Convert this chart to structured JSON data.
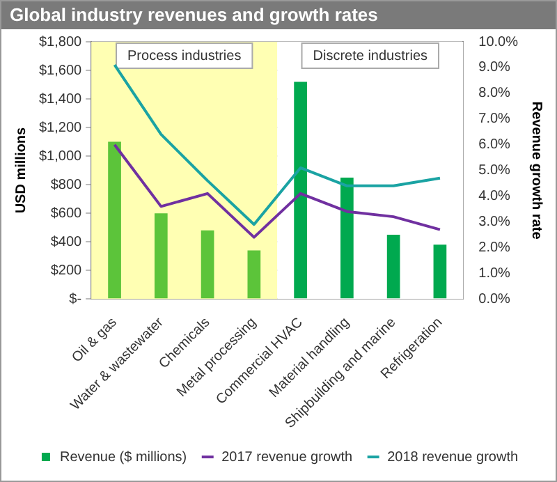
{
  "chart_data": {
    "type": "bar",
    "title": "Global industry revenues and growth rates",
    "ylabel": "USD millions",
    "y2label": "Revenue growth rate",
    "categories": [
      "Oil & gas",
      "Water & wastewater",
      "Chemicals",
      "Metal processing",
      "Commercial HVAC",
      "Material handling",
      "Shipbuilding and marine",
      "Refrigeration"
    ],
    "series": [
      {
        "name": "Revenue ($ millions)",
        "color": "#00a94f",
        "colors": [
          "#5cc43a",
          "#5cc43a",
          "#5cc43a",
          "#5cc43a",
          "#00a94f",
          "#00a94f",
          "#00a94f",
          "#00a94f"
        ],
        "values": [
          1100,
          600,
          480,
          340,
          1520,
          850,
          450,
          380
        ]
      },
      {
        "name": "2017 revenue growth",
        "type": "line",
        "axis": "y2",
        "color": "#7030a0",
        "values": [
          6.0,
          3.6,
          4.1,
          2.4,
          4.1,
          3.4,
          3.2,
          2.7
        ]
      },
      {
        "name": "2018 revenue growth",
        "type": "line",
        "axis": "y2",
        "color": "#1aa3a3",
        "values": [
          9.1,
          6.4,
          4.6,
          2.9,
          5.1,
          4.4,
          4.4,
          4.7
        ]
      }
    ],
    "ylim": [
      0,
      1800
    ],
    "yticks": [
      {
        "value": 0,
        "label": "$-"
      },
      {
        "value": 200,
        "label": "$200"
      },
      {
        "value": 400,
        "label": "$400"
      },
      {
        "value": 600,
        "label": "$600"
      },
      {
        "value": 800,
        "label": "$800"
      },
      {
        "value": 1000,
        "label": "$1,000"
      },
      {
        "value": 1200,
        "label": "$1,200"
      },
      {
        "value": 1400,
        "label": "$1,400"
      },
      {
        "value": 1600,
        "label": "$1,600"
      },
      {
        "value": 1800,
        "label": "$1,800"
      }
    ],
    "y2lim": [
      0,
      10
    ],
    "y2ticks": [
      {
        "value": 0,
        "label": "0.0%"
      },
      {
        "value": 1,
        "label": "1.0%"
      },
      {
        "value": 2,
        "label": "2.0%"
      },
      {
        "value": 3,
        "label": "3.0%"
      },
      {
        "value": 4,
        "label": "4.0%"
      },
      {
        "value": 5,
        "label": "5.0%"
      },
      {
        "value": 6,
        "label": "6.0%"
      },
      {
        "value": 7,
        "label": "7.0%"
      },
      {
        "value": 8,
        "label": "8.0%"
      },
      {
        "value": 9,
        "label": "9.0%"
      },
      {
        "value": 10,
        "label": "10.0%"
      }
    ],
    "bands": [
      {
        "axis": "x",
        "from": "Oil & gas",
        "to": "Metal processing",
        "label": "Process industries",
        "color": "#ffffb3"
      },
      {
        "axis": "x",
        "from": "Commercial HVAC",
        "to": "Refrigeration",
        "label": "Discrete industries",
        "color": "#ffffff"
      }
    ],
    "grid": "y",
    "legend": "bottom",
    "marker": "none",
    "line_style": "solid"
  }
}
